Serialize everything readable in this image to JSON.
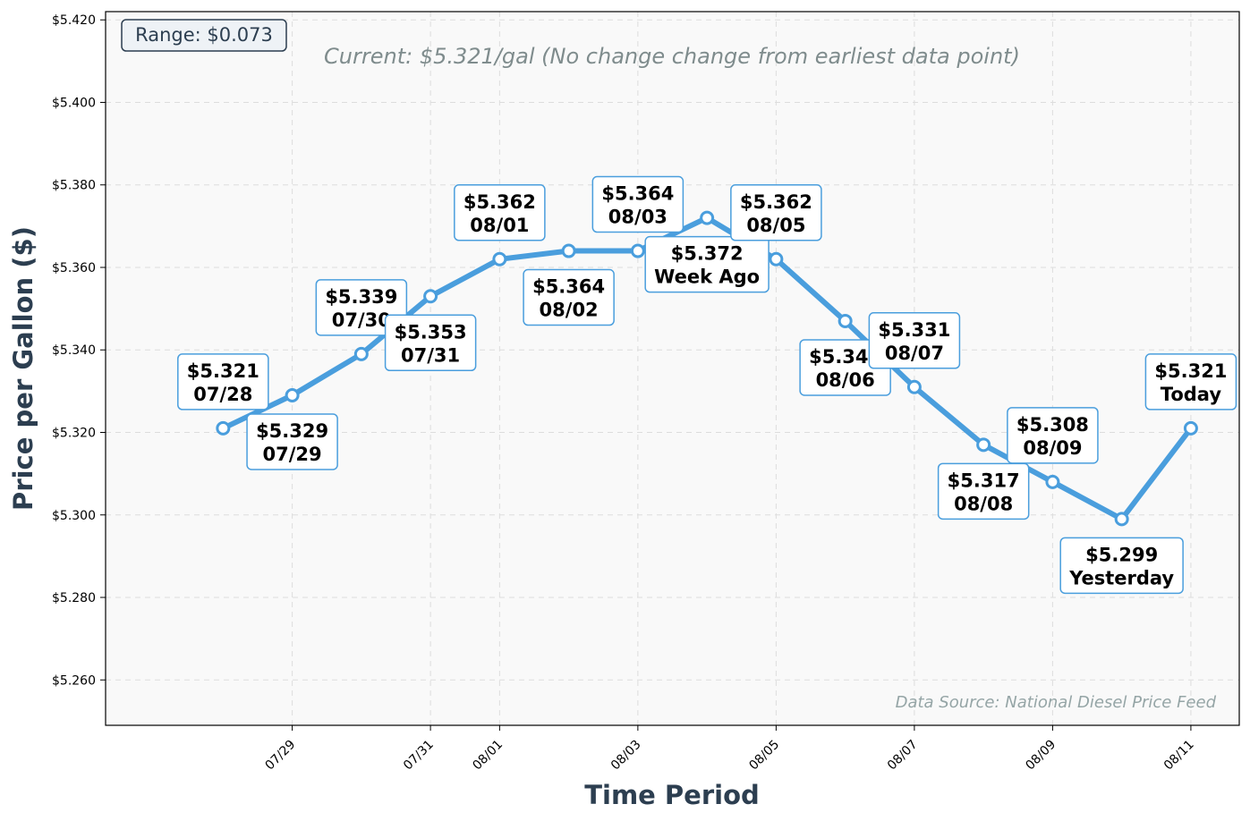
{
  "chart_data": {
    "type": "line",
    "title": "",
    "xlabel": "Time Period",
    "ylabel": "Price per Gallon ($)",
    "subtitle": "Current: $5.321/gal (No change change from earliest data point)",
    "range_label": "Range: $0.073",
    "source_label": "Data Source: National Diesel Price Feed",
    "ylim": [
      5.249,
      5.422
    ],
    "xlim": [
      -1.7,
      14.7
    ],
    "grid": true,
    "line_color": "#4a9edd",
    "marker_fill": "#ffffff",
    "label_border_color": "#4a9edd",
    "y_ticks": [
      5.26,
      5.28,
      5.3,
      5.32,
      5.34,
      5.36,
      5.38,
      5.4,
      5.42
    ],
    "y_tick_labels": [
      "$5.260",
      "$5.280",
      "$5.300",
      "$5.320",
      "$5.340",
      "$5.360",
      "$5.380",
      "$5.400",
      "$5.420"
    ],
    "x_ticks": [
      1,
      3,
      4,
      6,
      8,
      10,
      12,
      14
    ],
    "x_tick_labels": [
      "07/29",
      "07/31",
      "08/01",
      "08/03",
      "08/05",
      "08/07",
      "08/09",
      "08/11"
    ],
    "series": [
      {
        "values": [
          5.321,
          5.329,
          5.339,
          5.353,
          5.362,
          5.364,
          5.364,
          5.372,
          5.362,
          5.347,
          5.331,
          5.317,
          5.308,
          5.299,
          5.321
        ]
      }
    ],
    "point_labels": [
      {
        "price": "$5.321",
        "label": "07/28",
        "placement": "above"
      },
      {
        "price": "$5.329",
        "label": "07/29",
        "placement": "below"
      },
      {
        "price": "$5.339",
        "label": "07/30",
        "placement": "above"
      },
      {
        "price": "$5.353",
        "label": "07/31",
        "placement": "below"
      },
      {
        "price": "$5.362",
        "label": "08/01",
        "placement": "above"
      },
      {
        "price": "$5.364",
        "label": "08/02",
        "placement": "below"
      },
      {
        "price": "$5.364",
        "label": "08/03",
        "placement": "above"
      },
      {
        "price": "$5.372",
        "label": "Week Ago",
        "placement": "below"
      },
      {
        "price": "$5.362",
        "label": "08/05",
        "placement": "above"
      },
      {
        "price": "$5.347",
        "label": "08/06",
        "placement": "below"
      },
      {
        "price": "$5.331",
        "label": "08/07",
        "placement": "above"
      },
      {
        "price": "$5.317",
        "label": "08/08",
        "placement": "below"
      },
      {
        "price": "$5.308",
        "label": "08/09",
        "placement": "above"
      },
      {
        "price": "$5.299",
        "label": "Yesterday",
        "placement": "below"
      },
      {
        "price": "$5.321",
        "label": "Today",
        "placement": "above"
      }
    ]
  }
}
